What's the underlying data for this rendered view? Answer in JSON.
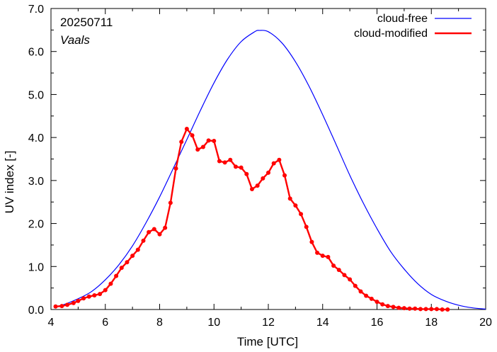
{
  "chart_data": {
    "type": "line",
    "title": "",
    "xlabel": "Time  [UTC]",
    "ylabel": "UV index  [-]",
    "xlim": [
      4,
      20
    ],
    "ylim": [
      0,
      7
    ],
    "x_ticks": [
      4,
      6,
      8,
      10,
      12,
      14,
      16,
      18,
      20
    ],
    "x_tick_labels": [
      "4",
      "6",
      "8",
      "10",
      "12",
      "14",
      "16",
      "18",
      "20"
    ],
    "y_ticks": [
      0,
      1,
      2,
      3,
      4,
      5,
      6,
      7
    ],
    "y_tick_labels": [
      "0.0",
      "1.0",
      "2.0",
      "3.0",
      "4.0",
      "5.0",
      "6.0",
      "7.0"
    ],
    "grid": false,
    "legend_position": "top-right",
    "annotations": {
      "date": "20250711",
      "location": "Vaals"
    },
    "series": [
      {
        "name": "cloud-free",
        "color": "#0000ff",
        "marker": "none",
        "x": [
          4.2,
          4.5,
          5.0,
          5.5,
          6.0,
          6.5,
          7.0,
          7.5,
          8.0,
          8.5,
          9.0,
          9.5,
          10.0,
          10.5,
          11.0,
          11.5,
          11.67,
          12.0,
          12.5,
          13.0,
          13.5,
          14.0,
          14.5,
          15.0,
          15.5,
          16.0,
          16.5,
          17.0,
          17.5,
          18.0,
          18.5,
          19.0,
          19.5,
          20.0
        ],
        "values": [
          0.07,
          0.12,
          0.25,
          0.42,
          0.69,
          1.04,
          1.48,
          2.02,
          2.62,
          3.28,
          3.95,
          4.63,
          5.27,
          5.82,
          6.23,
          6.46,
          6.49,
          6.46,
          6.2,
          5.76,
          5.19,
          4.53,
          3.83,
          3.12,
          2.47,
          1.88,
          1.35,
          0.94,
          0.6,
          0.35,
          0.2,
          0.1,
          0.04,
          0.01
        ]
      },
      {
        "name": "cloud-modified",
        "color": "#ff0000",
        "marker": "circle",
        "x": [
          4.17,
          4.4,
          4.6,
          4.83,
          5.0,
          5.2,
          5.4,
          5.6,
          5.8,
          6.0,
          6.2,
          6.4,
          6.6,
          6.8,
          7.0,
          7.2,
          7.4,
          7.6,
          7.8,
          8.0,
          8.2,
          8.4,
          8.6,
          8.8,
          9.0,
          9.2,
          9.4,
          9.6,
          9.8,
          10.0,
          10.2,
          10.4,
          10.6,
          10.8,
          11.0,
          11.2,
          11.4,
          11.6,
          11.8,
          12.0,
          12.2,
          12.4,
          12.6,
          12.8,
          13.0,
          13.2,
          13.4,
          13.6,
          13.8,
          14.0,
          14.2,
          14.4,
          14.6,
          14.8,
          15.0,
          15.2,
          15.4,
          15.6,
          15.8,
          16.0,
          16.2,
          16.4,
          16.6,
          16.8,
          17.0,
          17.2,
          17.4,
          17.6,
          17.8,
          18.0,
          18.2,
          18.4,
          18.6
        ],
        "values": [
          0.07,
          0.08,
          0.11,
          0.15,
          0.2,
          0.26,
          0.3,
          0.33,
          0.36,
          0.45,
          0.6,
          0.78,
          0.97,
          1.1,
          1.25,
          1.39,
          1.6,
          1.8,
          1.87,
          1.75,
          1.9,
          2.48,
          3.28,
          3.9,
          4.2,
          4.05,
          3.72,
          3.78,
          3.93,
          3.92,
          3.45,
          3.42,
          3.48,
          3.32,
          3.3,
          3.15,
          2.8,
          2.88,
          3.05,
          3.18,
          3.4,
          3.48,
          3.12,
          2.58,
          2.42,
          2.22,
          1.92,
          1.57,
          1.32,
          1.25,
          1.22,
          1.02,
          0.92,
          0.8,
          0.7,
          0.55,
          0.42,
          0.32,
          0.25,
          0.18,
          0.12,
          0.08,
          0.06,
          0.04,
          0.03,
          0.02,
          0.02,
          0.01,
          0.01,
          0.01,
          0.01,
          0.0,
          0.0
        ]
      }
    ]
  }
}
